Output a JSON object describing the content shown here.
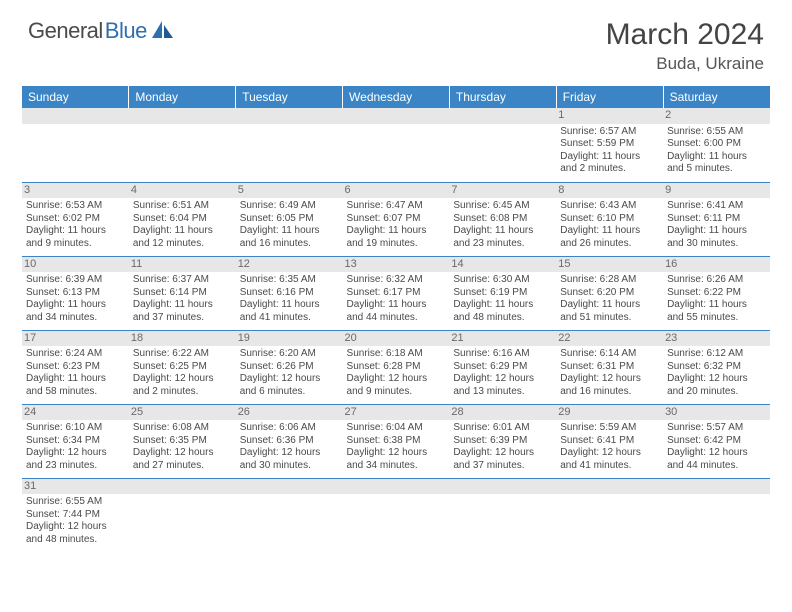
{
  "brand": {
    "part1": "General",
    "part2": "Blue"
  },
  "title": "March 2024",
  "location": "Buda, Ukraine",
  "colors": {
    "header_bg": "#3b85c6",
    "header_text": "#ffffff",
    "daynum_bg": "#e7e7e7",
    "daynum_text": "#6a6a6a",
    "body_text": "#4a4a4a",
    "row_divider": "#3b85c6",
    "brand_grey": "#4a4a4a",
    "brand_blue": "#2f6fb0"
  },
  "daysOfWeek": [
    "Sunday",
    "Monday",
    "Tuesday",
    "Wednesday",
    "Thursday",
    "Friday",
    "Saturday"
  ],
  "weeks": [
    [
      null,
      null,
      null,
      null,
      null,
      {
        "n": "1",
        "sunrise": "Sunrise: 6:57 AM",
        "sunset": "Sunset: 5:59 PM",
        "day1": "Daylight: 11 hours",
        "day2": "and 2 minutes."
      },
      {
        "n": "2",
        "sunrise": "Sunrise: 6:55 AM",
        "sunset": "Sunset: 6:00 PM",
        "day1": "Daylight: 11 hours",
        "day2": "and 5 minutes."
      }
    ],
    [
      {
        "n": "3",
        "sunrise": "Sunrise: 6:53 AM",
        "sunset": "Sunset: 6:02 PM",
        "day1": "Daylight: 11 hours",
        "day2": "and 9 minutes."
      },
      {
        "n": "4",
        "sunrise": "Sunrise: 6:51 AM",
        "sunset": "Sunset: 6:04 PM",
        "day1": "Daylight: 11 hours",
        "day2": "and 12 minutes."
      },
      {
        "n": "5",
        "sunrise": "Sunrise: 6:49 AM",
        "sunset": "Sunset: 6:05 PM",
        "day1": "Daylight: 11 hours",
        "day2": "and 16 minutes."
      },
      {
        "n": "6",
        "sunrise": "Sunrise: 6:47 AM",
        "sunset": "Sunset: 6:07 PM",
        "day1": "Daylight: 11 hours",
        "day2": "and 19 minutes."
      },
      {
        "n": "7",
        "sunrise": "Sunrise: 6:45 AM",
        "sunset": "Sunset: 6:08 PM",
        "day1": "Daylight: 11 hours",
        "day2": "and 23 minutes."
      },
      {
        "n": "8",
        "sunrise": "Sunrise: 6:43 AM",
        "sunset": "Sunset: 6:10 PM",
        "day1": "Daylight: 11 hours",
        "day2": "and 26 minutes."
      },
      {
        "n": "9",
        "sunrise": "Sunrise: 6:41 AM",
        "sunset": "Sunset: 6:11 PM",
        "day1": "Daylight: 11 hours",
        "day2": "and 30 minutes."
      }
    ],
    [
      {
        "n": "10",
        "sunrise": "Sunrise: 6:39 AM",
        "sunset": "Sunset: 6:13 PM",
        "day1": "Daylight: 11 hours",
        "day2": "and 34 minutes."
      },
      {
        "n": "11",
        "sunrise": "Sunrise: 6:37 AM",
        "sunset": "Sunset: 6:14 PM",
        "day1": "Daylight: 11 hours",
        "day2": "and 37 minutes."
      },
      {
        "n": "12",
        "sunrise": "Sunrise: 6:35 AM",
        "sunset": "Sunset: 6:16 PM",
        "day1": "Daylight: 11 hours",
        "day2": "and 41 minutes."
      },
      {
        "n": "13",
        "sunrise": "Sunrise: 6:32 AM",
        "sunset": "Sunset: 6:17 PM",
        "day1": "Daylight: 11 hours",
        "day2": "and 44 minutes."
      },
      {
        "n": "14",
        "sunrise": "Sunrise: 6:30 AM",
        "sunset": "Sunset: 6:19 PM",
        "day1": "Daylight: 11 hours",
        "day2": "and 48 minutes."
      },
      {
        "n": "15",
        "sunrise": "Sunrise: 6:28 AM",
        "sunset": "Sunset: 6:20 PM",
        "day1": "Daylight: 11 hours",
        "day2": "and 51 minutes."
      },
      {
        "n": "16",
        "sunrise": "Sunrise: 6:26 AM",
        "sunset": "Sunset: 6:22 PM",
        "day1": "Daylight: 11 hours",
        "day2": "and 55 minutes."
      }
    ],
    [
      {
        "n": "17",
        "sunrise": "Sunrise: 6:24 AM",
        "sunset": "Sunset: 6:23 PM",
        "day1": "Daylight: 11 hours",
        "day2": "and 58 minutes."
      },
      {
        "n": "18",
        "sunrise": "Sunrise: 6:22 AM",
        "sunset": "Sunset: 6:25 PM",
        "day1": "Daylight: 12 hours",
        "day2": "and 2 minutes."
      },
      {
        "n": "19",
        "sunrise": "Sunrise: 6:20 AM",
        "sunset": "Sunset: 6:26 PM",
        "day1": "Daylight: 12 hours",
        "day2": "and 6 minutes."
      },
      {
        "n": "20",
        "sunrise": "Sunrise: 6:18 AM",
        "sunset": "Sunset: 6:28 PM",
        "day1": "Daylight: 12 hours",
        "day2": "and 9 minutes."
      },
      {
        "n": "21",
        "sunrise": "Sunrise: 6:16 AM",
        "sunset": "Sunset: 6:29 PM",
        "day1": "Daylight: 12 hours",
        "day2": "and 13 minutes."
      },
      {
        "n": "22",
        "sunrise": "Sunrise: 6:14 AM",
        "sunset": "Sunset: 6:31 PM",
        "day1": "Daylight: 12 hours",
        "day2": "and 16 minutes."
      },
      {
        "n": "23",
        "sunrise": "Sunrise: 6:12 AM",
        "sunset": "Sunset: 6:32 PM",
        "day1": "Daylight: 12 hours",
        "day2": "and 20 minutes."
      }
    ],
    [
      {
        "n": "24",
        "sunrise": "Sunrise: 6:10 AM",
        "sunset": "Sunset: 6:34 PM",
        "day1": "Daylight: 12 hours",
        "day2": "and 23 minutes."
      },
      {
        "n": "25",
        "sunrise": "Sunrise: 6:08 AM",
        "sunset": "Sunset: 6:35 PM",
        "day1": "Daylight: 12 hours",
        "day2": "and 27 minutes."
      },
      {
        "n": "26",
        "sunrise": "Sunrise: 6:06 AM",
        "sunset": "Sunset: 6:36 PM",
        "day1": "Daylight: 12 hours",
        "day2": "and 30 minutes."
      },
      {
        "n": "27",
        "sunrise": "Sunrise: 6:04 AM",
        "sunset": "Sunset: 6:38 PM",
        "day1": "Daylight: 12 hours",
        "day2": "and 34 minutes."
      },
      {
        "n": "28",
        "sunrise": "Sunrise: 6:01 AM",
        "sunset": "Sunset: 6:39 PM",
        "day1": "Daylight: 12 hours",
        "day2": "and 37 minutes."
      },
      {
        "n": "29",
        "sunrise": "Sunrise: 5:59 AM",
        "sunset": "Sunset: 6:41 PM",
        "day1": "Daylight: 12 hours",
        "day2": "and 41 minutes."
      },
      {
        "n": "30",
        "sunrise": "Sunrise: 5:57 AM",
        "sunset": "Sunset: 6:42 PM",
        "day1": "Daylight: 12 hours",
        "day2": "and 44 minutes."
      }
    ],
    [
      {
        "n": "31",
        "sunrise": "Sunrise: 6:55 AM",
        "sunset": "Sunset: 7:44 PM",
        "day1": "Daylight: 12 hours",
        "day2": "and 48 minutes."
      },
      null,
      null,
      null,
      null,
      null,
      null
    ]
  ]
}
